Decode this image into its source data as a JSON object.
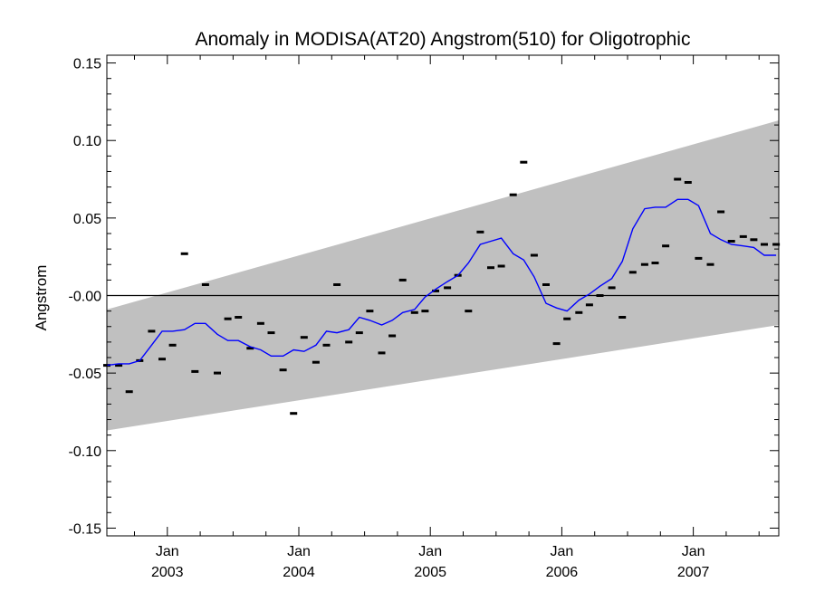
{
  "chart_data": {
    "type": "line",
    "title": "Anomaly in MODISA(AT20) Angstrom(510) for Oligotrophic",
    "xlabel": "",
    "ylabel": "Angstrom",
    "ylim": [
      -0.155,
      0.155
    ],
    "y_ticks": [
      0.15,
      0.1,
      0.05,
      0.0,
      -0.05,
      -0.1,
      -0.15
    ],
    "y_tick_labels": [
      "0.15",
      "0.10",
      "0.05",
      "-0.00",
      "-0.05",
      "-0.10",
      "-0.15"
    ],
    "xlim": [
      2002.54,
      2007.65
    ],
    "x_ticks": [
      {
        "value": 2003.0,
        "month": "Jan",
        "year": "2003"
      },
      {
        "value": 2004.0,
        "month": "Jan",
        "year": "2004"
      },
      {
        "value": 2005.0,
        "month": "Jan",
        "year": "2005"
      },
      {
        "value": 2006.0,
        "month": "Jan",
        "year": "2006"
      },
      {
        "value": 2007.0,
        "month": "Jan",
        "year": "2007"
      }
    ],
    "grid": false,
    "zero_line": 0.0,
    "band": {
      "x": [
        2002.54,
        2007.65
      ],
      "lower": [
        -0.087,
        -0.019
      ],
      "upper": [
        -0.009,
        0.113
      ],
      "color": "#c0c0c0"
    },
    "line_color": "#0000ff",
    "marker_color": "#000000",
    "series": [
      {
        "style": "markers",
        "x": [
          2002.54,
          2002.63,
          2002.71,
          2002.79,
          2002.88,
          2002.96,
          2003.04,
          2003.13,
          2003.21,
          2003.29,
          2003.38,
          2003.46,
          2003.54,
          2003.63,
          2003.71,
          2003.79,
          2003.88,
          2003.96,
          2004.04,
          2004.13,
          2004.21,
          2004.29,
          2004.38,
          2004.46,
          2004.54,
          2004.63,
          2004.71,
          2004.79,
          2004.88,
          2004.96,
          2005.04,
          2005.13,
          2005.21,
          2005.29,
          2005.38,
          2005.46,
          2005.54,
          2005.63,
          2005.71,
          2005.79,
          2005.88,
          2005.96,
          2006.04,
          2006.13,
          2006.21,
          2006.29,
          2006.38,
          2006.46,
          2006.54,
          2006.63,
          2006.71,
          2006.79,
          2006.88,
          2006.96,
          2007.04,
          2007.13,
          2007.21,
          2007.29,
          2007.38,
          2007.46,
          2007.54,
          2007.63
        ],
        "y": [
          -0.045,
          -0.045,
          -0.062,
          -0.042,
          -0.023,
          -0.041,
          -0.032,
          0.027,
          -0.049,
          0.007,
          -0.05,
          -0.015,
          -0.014,
          -0.034,
          -0.018,
          -0.024,
          -0.048,
          -0.076,
          -0.027,
          -0.043,
          -0.032,
          0.007,
          -0.03,
          -0.024,
          -0.01,
          -0.037,
          -0.026,
          0.01,
          -0.011,
          -0.01,
          0.003,
          0.005,
          0.013,
          -0.01,
          0.041,
          0.018,
          0.019,
          0.065,
          0.086,
          0.026,
          0.007,
          -0.031,
          -0.015,
          -0.011,
          -0.006,
          0.0,
          0.005,
          -0.014,
          0.015,
          0.02,
          0.021,
          0.032,
          0.075,
          0.073,
          0.024,
          0.02,
          0.054,
          0.035,
          0.038,
          0.036,
          0.033,
          0.033
        ]
      },
      {
        "style": "line",
        "x": [
          2002.54,
          2002.63,
          2002.71,
          2002.79,
          2002.88,
          2002.96,
          2003.04,
          2003.13,
          2003.21,
          2003.29,
          2003.38,
          2003.46,
          2003.54,
          2003.63,
          2003.71,
          2003.79,
          2003.88,
          2003.96,
          2004.04,
          2004.13,
          2004.21,
          2004.29,
          2004.38,
          2004.46,
          2004.54,
          2004.63,
          2004.71,
          2004.79,
          2004.88,
          2004.96,
          2005.04,
          2005.13,
          2005.21,
          2005.29,
          2005.38,
          2005.46,
          2005.54,
          2005.63,
          2005.71,
          2005.79,
          2005.88,
          2005.96,
          2006.04,
          2006.13,
          2006.21,
          2006.29,
          2006.38,
          2006.46,
          2006.54,
          2006.63,
          2006.71,
          2006.79,
          2006.88,
          2006.96,
          2007.04,
          2007.13,
          2007.21,
          2007.29,
          2007.38,
          2007.46,
          2007.54,
          2007.63
        ],
        "y": [
          -0.045,
          -0.044,
          -0.044,
          -0.042,
          -0.032,
          -0.023,
          -0.023,
          -0.022,
          -0.018,
          -0.018,
          -0.025,
          -0.029,
          -0.029,
          -0.033,
          -0.035,
          -0.039,
          -0.039,
          -0.035,
          -0.036,
          -0.032,
          -0.023,
          -0.024,
          -0.022,
          -0.014,
          -0.016,
          -0.019,
          -0.016,
          -0.011,
          -0.009,
          -0.001,
          0.004,
          0.009,
          0.013,
          0.021,
          0.033,
          0.035,
          0.037,
          0.027,
          0.023,
          0.012,
          -0.005,
          -0.008,
          -0.01,
          -0.003,
          0.001,
          0.006,
          0.011,
          0.022,
          0.043,
          0.056,
          0.057,
          0.057,
          0.062,
          0.062,
          0.058,
          0.04,
          0.036,
          0.033,
          0.032,
          0.031,
          0.026,
          0.026
        ]
      }
    ]
  }
}
